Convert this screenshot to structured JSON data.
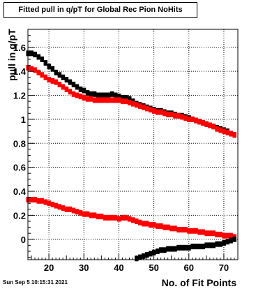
{
  "chart_data": {
    "type": "scatter",
    "title": "Fitted pull in q/pT for Global Rec Pion NoHits",
    "xlabel": "No. of Fit Points",
    "ylabel": "pull in q/pT",
    "xlim": [
      14,
      74
    ],
    "ylim": [
      -0.17,
      1.75
    ],
    "x_ticks": [
      20,
      30,
      40,
      50,
      60,
      70
    ],
    "y_ticks": [
      0,
      0.2,
      0.4,
      0.6,
      0.8,
      1,
      1.2,
      1.4,
      1.6
    ],
    "x_tick_labels": [
      "20",
      "30",
      "40",
      "50",
      "60",
      "70"
    ],
    "y_tick_labels": [
      "0",
      "0.2",
      "0.4",
      "0.6",
      "0.8",
      "1",
      "1.2",
      "1.4",
      "1.6"
    ],
    "grid": true,
    "legend": "none",
    "series": [
      {
        "color": "#000000",
        "x": [
          14,
          15,
          16,
          17,
          18,
          19,
          20,
          21,
          22,
          23,
          24,
          25,
          26,
          27,
          28,
          29,
          30,
          31,
          32,
          33,
          34,
          35,
          36,
          37,
          38,
          39,
          40,
          41,
          42,
          43,
          44,
          45,
          46,
          47,
          48,
          49,
          50,
          51,
          52,
          53,
          54,
          55,
          56,
          57,
          58,
          59,
          60,
          61,
          62,
          63,
          64,
          65,
          66,
          67,
          68,
          69,
          70,
          71,
          72,
          73
        ],
        "values": [
          1.55,
          1.55,
          1.54,
          1.52,
          1.5,
          1.47,
          1.44,
          1.42,
          1.39,
          1.37,
          1.35,
          1.33,
          1.31,
          1.29,
          1.27,
          1.25,
          1.24,
          1.22,
          1.21,
          1.21,
          1.2,
          1.2,
          1.2,
          1.2,
          1.21,
          1.2,
          1.19,
          1.18,
          1.18,
          1.17,
          1.15,
          1.13,
          1.12,
          1.11,
          1.1,
          1.09,
          1.08,
          1.07,
          1.07,
          1.06,
          1.05,
          1.05,
          1.04,
          1.03,
          1.03,
          1.02,
          1.01,
          1.0,
          0.99,
          0.98,
          0.97,
          0.96,
          0.95,
          0.94,
          0.93,
          0.92,
          0.91,
          0.9,
          0.88,
          0.87
        ]
      },
      {
        "color": "#ff0000",
        "x": [
          14,
          15,
          16,
          17,
          18,
          19,
          20,
          21,
          22,
          23,
          24,
          25,
          26,
          27,
          28,
          29,
          30,
          31,
          32,
          33,
          34,
          35,
          36,
          37,
          38,
          39,
          40,
          41,
          42,
          43,
          44,
          45,
          46,
          47,
          48,
          49,
          50,
          51,
          52,
          53,
          54,
          55,
          56,
          57,
          58,
          59,
          60,
          61,
          62,
          63,
          64,
          65,
          66,
          67,
          68,
          69,
          70,
          71,
          72,
          73
        ],
        "values": [
          1.43,
          1.42,
          1.41,
          1.39,
          1.37,
          1.35,
          1.33,
          1.32,
          1.31,
          1.29,
          1.27,
          1.25,
          1.23,
          1.21,
          1.2,
          1.19,
          1.18,
          1.17,
          1.17,
          1.16,
          1.16,
          1.16,
          1.16,
          1.16,
          1.16,
          1.16,
          1.16,
          1.15,
          1.15,
          1.14,
          1.13,
          1.12,
          1.11,
          1.1,
          1.09,
          1.08,
          1.07,
          1.06,
          1.06,
          1.05,
          1.04,
          1.04,
          1.03,
          1.03,
          1.02,
          1.01,
          1.0,
          1.0,
          0.99,
          0.98,
          0.97,
          0.96,
          0.95,
          0.94,
          0.92,
          0.91,
          0.9,
          0.89,
          0.88,
          0.87
        ]
      },
      {
        "color": "#ff0000",
        "x": [
          14,
          15,
          16,
          17,
          18,
          19,
          20,
          21,
          22,
          23,
          24,
          25,
          26,
          27,
          28,
          29,
          30,
          31,
          32,
          33,
          34,
          35,
          36,
          37,
          38,
          39,
          40,
          41,
          42,
          43,
          44,
          45,
          46,
          47,
          48,
          49,
          50,
          51,
          52,
          53,
          54,
          55,
          56,
          57,
          58,
          59,
          60,
          61,
          62,
          63,
          64,
          65,
          66,
          67,
          68,
          69,
          70,
          71,
          72,
          73
        ],
        "values": [
          0.33,
          0.33,
          0.33,
          0.32,
          0.32,
          0.31,
          0.3,
          0.29,
          0.28,
          0.27,
          0.26,
          0.25,
          0.25,
          0.24,
          0.23,
          0.22,
          0.21,
          0.21,
          0.2,
          0.2,
          0.19,
          0.19,
          0.18,
          0.18,
          0.18,
          0.18,
          0.17,
          0.18,
          0.18,
          0.17,
          0.16,
          0.15,
          0.14,
          0.13,
          0.13,
          0.12,
          0.12,
          0.11,
          0.11,
          0.1,
          0.1,
          0.09,
          0.09,
          0.08,
          0.08,
          0.08,
          0.07,
          0.07,
          0.07,
          0.06,
          0.06,
          0.05,
          0.05,
          0.05,
          0.04,
          0.04,
          0.03,
          0.03,
          0.03,
          0.02
        ]
      },
      {
        "color": "#000000",
        "x": [
          45,
          46,
          47,
          48,
          49,
          50,
          51,
          52,
          53,
          54,
          55,
          56,
          57,
          58,
          59,
          60,
          61,
          62,
          63,
          64,
          65,
          66,
          67,
          68,
          69,
          70,
          71,
          72,
          73
        ],
        "values": [
          -0.16,
          -0.15,
          -0.14,
          -0.13,
          -0.12,
          -0.11,
          -0.1,
          -0.09,
          -0.09,
          -0.08,
          -0.08,
          -0.08,
          -0.07,
          -0.07,
          -0.07,
          -0.07,
          -0.06,
          -0.06,
          -0.06,
          -0.06,
          -0.05,
          -0.05,
          -0.05,
          -0.04,
          -0.04,
          -0.03,
          -0.02,
          -0.01,
          0.0
        ]
      }
    ]
  },
  "footer": {
    "timestamp": "Sun Sep  5 10:15:31 2021"
  }
}
